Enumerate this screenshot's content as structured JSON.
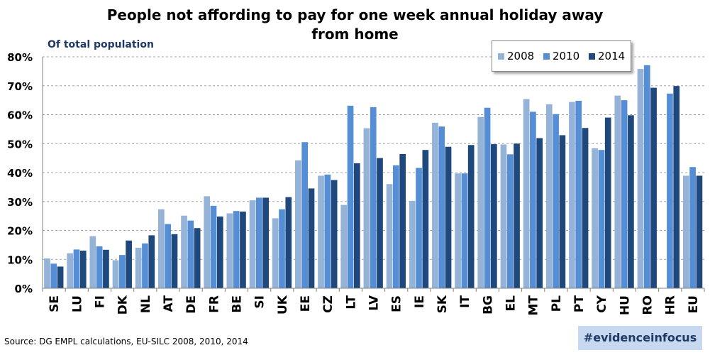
{
  "chart_data": {
    "type": "bar",
    "title": "People not affording to pay for one week annual holiday away\nfrom home",
    "subtitle": "Of total population",
    "ylim": [
      0,
      80
    ],
    "y_ticks": [
      "0%",
      "10%",
      "20%",
      "30%",
      "40%",
      "50%",
      "60%",
      "70%",
      "80%"
    ],
    "grid": "horizontal dashed",
    "legend_position": "top-right",
    "categories": [
      "SE",
      "LU",
      "FI",
      "DK",
      "NL",
      "AT",
      "DE",
      "FR",
      "BE",
      "SI",
      "UK",
      "EE",
      "CZ",
      "LT",
      "LV",
      "ES",
      "IE",
      "SK",
      "IT",
      "BG",
      "EL",
      "MT",
      "PL",
      "PT",
      "CY",
      "HU",
      "RO",
      "HR",
      "EU"
    ],
    "series": [
      {
        "name": "2008",
        "color": "#95b3d7",
        "values": [
          10.3,
          12.1,
          18.0,
          9.7,
          14.0,
          27.3,
          25.1,
          31.8,
          25.9,
          30.4,
          24.2,
          44.2,
          38.9,
          28.8,
          55.3,
          36.0,
          30.2,
          57.2,
          39.7,
          59.2,
          49.7,
          65.4,
          63.6,
          64.4,
          48.4,
          66.6,
          75.8,
          null,
          38.9
        ]
      },
      {
        "name": "2010",
        "color": "#558ed5",
        "values": [
          8.5,
          13.4,
          14.5,
          11.5,
          15.5,
          22.2,
          23.4,
          28.5,
          26.7,
          31.3,
          27.3,
          50.5,
          39.3,
          63.1,
          62.6,
          42.5,
          41.6,
          55.9,
          39.7,
          62.4,
          46.3,
          61.0,
          60.2,
          64.8,
          47.8,
          65.0,
          77.1,
          67.3,
          41.9
        ]
      },
      {
        "name": "2014",
        "color": "#1f497d",
        "values": [
          7.5,
          13.0,
          13.3,
          16.5,
          18.3,
          18.7,
          20.8,
          24.8,
          26.5,
          31.3,
          31.5,
          34.5,
          37.4,
          43.2,
          45.0,
          46.4,
          47.8,
          48.9,
          49.5,
          49.8,
          50.0,
          51.9,
          52.9,
          55.4,
          59.0,
          59.8,
          69.3,
          69.9,
          38.9
        ]
      }
    ],
    "source": "Source: DG EMPL calculations, EU-SILC 2008, 2010, 2014"
  },
  "hashtag": "#evidenceinfocus"
}
